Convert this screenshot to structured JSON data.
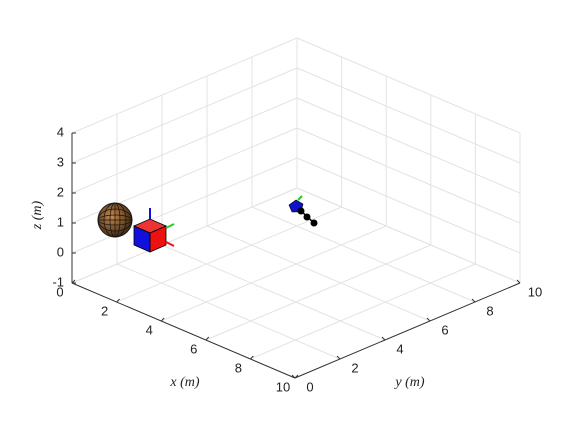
{
  "chart_data": {
    "type": "scene3d",
    "xlabel": "x (m)",
    "ylabel": "y (m)",
    "zlabel": "z (m)",
    "xlim": [
      0,
      10
    ],
    "ylim": [
      0,
      10
    ],
    "zlim": [
      -1,
      4
    ],
    "xticks": [
      0,
      2,
      4,
      6,
      8,
      10
    ],
    "yticks": [
      0,
      2,
      4,
      6,
      8,
      10
    ],
    "zticks": [
      -1,
      0,
      1,
      2,
      3,
      4
    ],
    "grid": true
  }
}
